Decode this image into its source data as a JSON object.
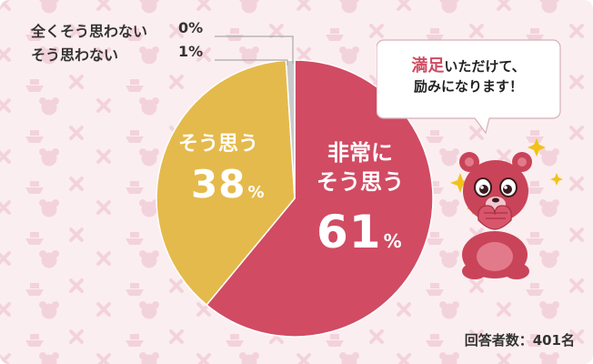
{
  "colors": {
    "background": "#fbeef1",
    "pattern": "#f3d3db",
    "very_satisfied": "#d14b63",
    "satisfied": "#e5ba4c",
    "not_satisfied": "#c9c9c9",
    "not_at_all": "#b5b5b5",
    "accent": "#d14b63"
  },
  "chart_data": {
    "type": "pie",
    "slices": [
      {
        "label": "非常に\nそう思う",
        "line1": "非常に",
        "line2": "そう思う",
        "value": 61,
        "unit": "%"
      },
      {
        "label": "そう思う",
        "value": 38,
        "unit": "%"
      },
      {
        "label": "そう思わない",
        "value": 1,
        "unit": "%"
      },
      {
        "label": "全くそう思わない",
        "value": 0,
        "unit": "%"
      }
    ]
  },
  "labels": {
    "not_at_all": "全くそう思わない",
    "not_at_all_pct": "0%",
    "disagree": "そう思わない",
    "disagree_pct": "1%",
    "agree": "そう思う",
    "agree_value": "38",
    "agree_unit": "%",
    "strongly_line1": "非常に",
    "strongly_line2": "そう思う",
    "strongly_value": "61",
    "strongly_unit": "%"
  },
  "bubble": {
    "accent_text": "満足",
    "line1_rest": "いただけて、",
    "line2": "励みになります！"
  },
  "mascot": {
    "icon": "bear-mascot-icon"
  },
  "footer": {
    "respondents": "回答者数：401名"
  }
}
